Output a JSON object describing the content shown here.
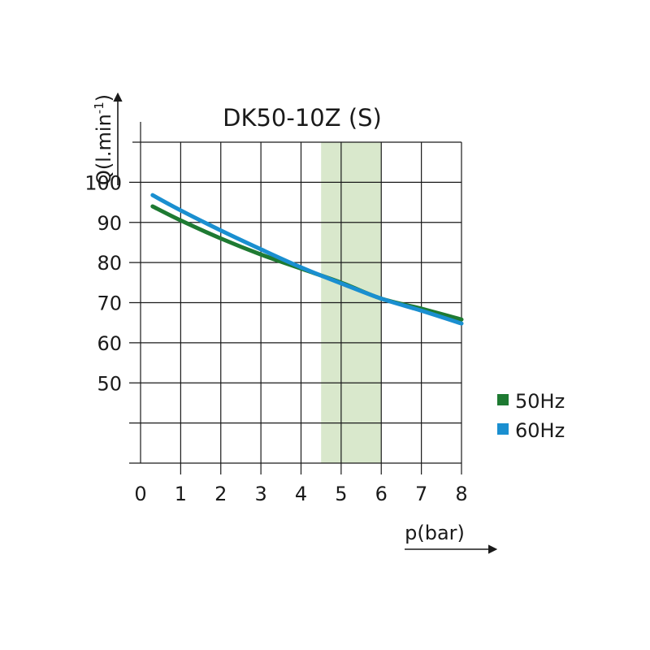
{
  "chart_data": {
    "type": "line",
    "title": "DK50-10Z (S)",
    "xlabel": "p(bar)",
    "ylabel_main": "Q(l.min",
    "ylabel_sup": "-1",
    "ylabel_close": ")",
    "xlim": [
      0,
      8
    ],
    "ylim": [
      30,
      110
    ],
    "x_ticks": [
      "0",
      "1",
      "2",
      "3",
      "4",
      "5",
      "6",
      "7",
      "8"
    ],
    "y_ticks": [
      "50",
      "60",
      "70",
      "80",
      "90",
      "100"
    ],
    "grid": true,
    "legend_position": "right",
    "highlight_band": {
      "x_from": 4.5,
      "x_to": 6,
      "color": "#d9e8cc"
    },
    "series": [
      {
        "name": "50Hz",
        "color": "#1e7a32",
        "x": [
          0.3,
          1,
          2,
          3,
          4,
          5,
          6,
          7,
          8
        ],
        "y": [
          94,
          90.5,
          86,
          82,
          78.5,
          75,
          71,
          68.5,
          65.8
        ]
      },
      {
        "name": "60Hz",
        "color": "#1a8fd0",
        "x": [
          0.3,
          1,
          2,
          3,
          4,
          5,
          6,
          7,
          8
        ],
        "y": [
          96.8,
          93,
          88,
          83.3,
          78.8,
          74.8,
          71,
          68,
          64.8
        ]
      }
    ]
  }
}
